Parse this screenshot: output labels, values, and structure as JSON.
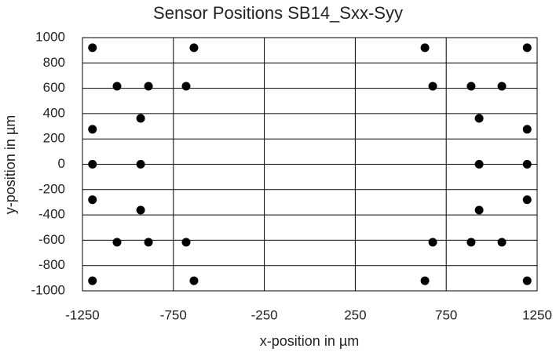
{
  "chart_data": {
    "type": "scatter",
    "title": "Sensor Positions SB14_Sxx-Syy",
    "x_label": "x-position in µm",
    "y_label": "y-position in µm",
    "series": [
      {
        "color": "#000000",
        "x": [
          -1195,
          -637,
          633,
          1195,
          -1060,
          -887,
          -680,
          676,
          887,
          1056,
          -930,
          931,
          -1195,
          1195,
          -1195,
          -930,
          931,
          1195,
          -1195,
          -930,
          931,
          1195,
          -1060,
          -887,
          -680,
          676,
          887,
          1056,
          -1195,
          -637,
          633,
          1195
        ],
        "values": [
          920,
          920,
          920,
          920,
          616,
          616,
          616,
          616,
          616,
          616,
          362,
          362,
          276,
          276,
          0,
          0,
          0,
          0,
          -280,
          -362,
          -362,
          -280,
          -616,
          -616,
          -616,
          -616,
          -616,
          -616,
          -920,
          -920,
          -920,
          -920
        ]
      }
    ],
    "xlim": [
      -1250,
      1250
    ],
    "xticks": [
      -1250,
      -750,
      -250,
      250,
      750,
      1250
    ],
    "ylim": [
      -1000,
      1000
    ],
    "yticks": [
      -1000,
      -800,
      -600,
      -400,
      -200,
      0,
      200,
      400,
      600,
      800,
      1000
    ],
    "grid": true
  }
}
